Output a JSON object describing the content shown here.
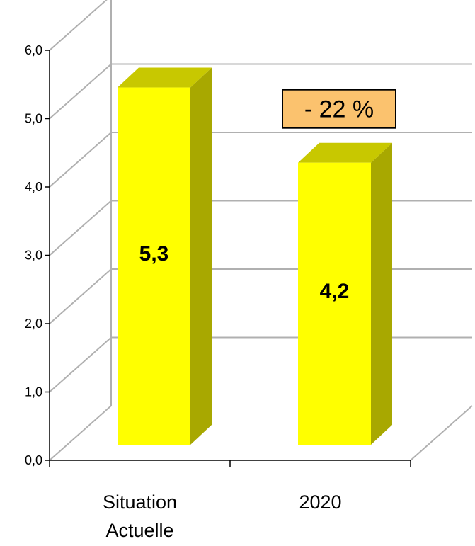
{
  "chart_data": {
    "type": "bar",
    "categories": [
      "Situation Actuelle",
      "2020"
    ],
    "category_lines": [
      [
        "Situation",
        "Actuelle"
      ],
      [
        "2020"
      ]
    ],
    "values": [
      5.3,
      4.2
    ],
    "data_labels": [
      "5,3",
      "4,2"
    ],
    "y_ticks": [
      "0,0",
      "1,0",
      "2,0",
      "3,0",
      "4,0",
      "5,0",
      "6,0"
    ],
    "ylim": [
      0,
      6
    ],
    "title": "",
    "xlabel": "",
    "ylabel": "",
    "grid": true,
    "legend": "none",
    "style": "3d-bar",
    "annotation": {
      "text": "- 22 %"
    },
    "colors": {
      "bar_front": "#ffff00",
      "bar_side": "#a8a800",
      "bar_top": "#c8c800",
      "annotation_fill": "#fbc26e",
      "grid": "#b0b0b0"
    }
  }
}
